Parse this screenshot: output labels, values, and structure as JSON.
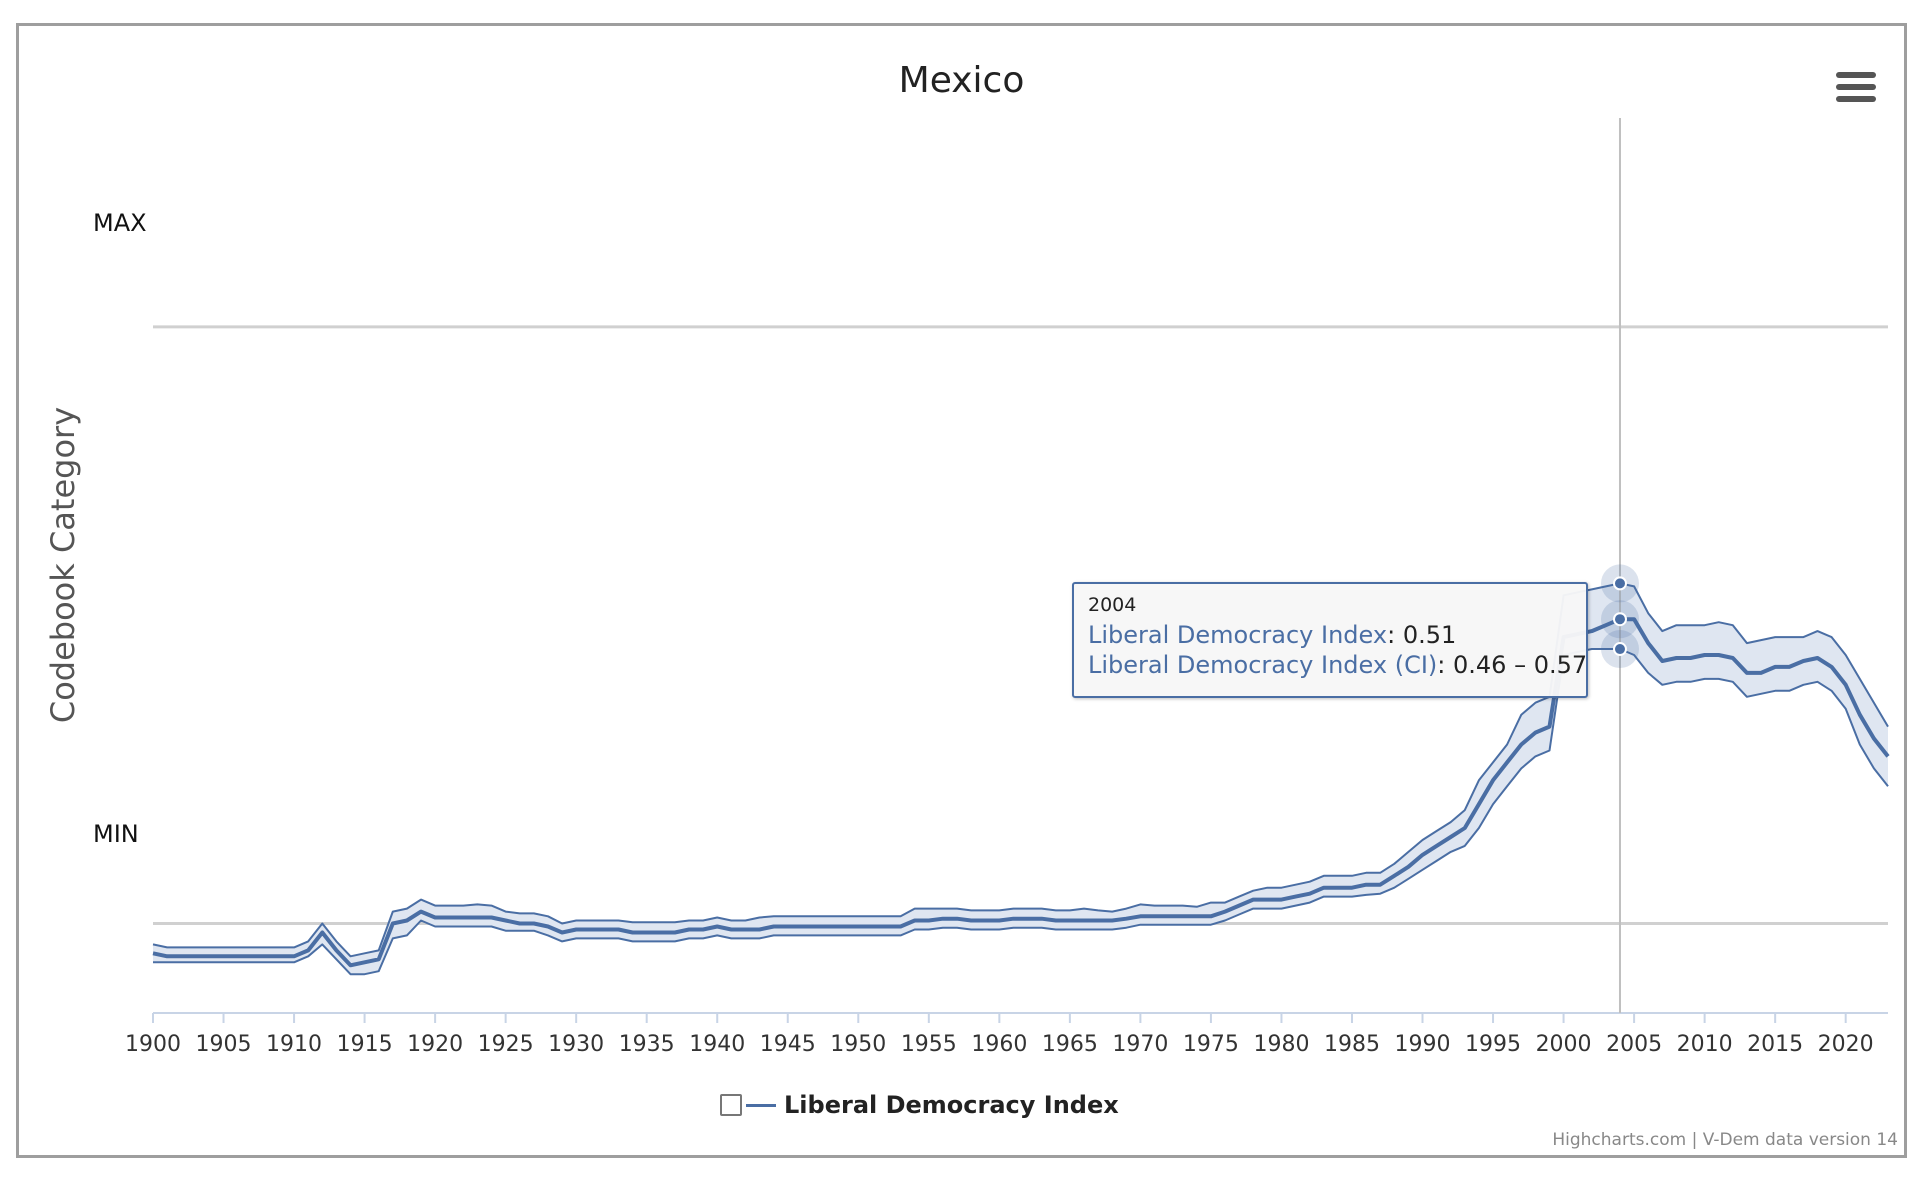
{
  "colors": {
    "series": "#4a6ea4",
    "band": "#dfe6f1",
    "grid": "#d0d0d0",
    "crosshair": "#c0c0c0"
  },
  "menu": {
    "icon": "hamburger-menu-icon"
  },
  "chart_data": {
    "type": "line",
    "title": "Mexico",
    "ylabel": "Codebook Category",
    "xlabel": "",
    "y_categories": {
      "max_label": "MAX",
      "min_label": "MIN"
    },
    "xlim": [
      1900,
      2023
    ],
    "ylim": [
      -0.15,
      1.35
    ],
    "grid": true,
    "legend_position": "bottom-center",
    "x_ticks": [
      1900,
      1905,
      1910,
      1915,
      1920,
      1925,
      1930,
      1935,
      1940,
      1945,
      1950,
      1955,
      1960,
      1965,
      1970,
      1975,
      1980,
      1985,
      1990,
      1995,
      2000,
      2005,
      2010,
      2015,
      2020
    ],
    "series": [
      {
        "name": "Liberal Democracy Index",
        "x": [
          1900,
          1901,
          1910,
          1911,
          1912,
          1913,
          1914,
          1915,
          1916,
          1917,
          1918,
          1919,
          1920,
          1921,
          1922,
          1923,
          1924,
          1925,
          1926,
          1927,
          1928,
          1929,
          1930,
          1931,
          1932,
          1933,
          1934,
          1935,
          1936,
          1937,
          1938,
          1939,
          1940,
          1941,
          1942,
          1943,
          1944,
          1945,
          1946,
          1947,
          1948,
          1949,
          1950,
          1951,
          1952,
          1953,
          1954,
          1955,
          1956,
          1957,
          1958,
          1959,
          1960,
          1961,
          1962,
          1963,
          1964,
          1965,
          1966,
          1967,
          1968,
          1969,
          1970,
          1971,
          1972,
          1973,
          1974,
          1975,
          1976,
          1977,
          1978,
          1979,
          1980,
          1981,
          1982,
          1983,
          1984,
          1985,
          1986,
          1987,
          1988,
          1989,
          1990,
          1991,
          1992,
          1993,
          1994,
          1995,
          1996,
          1997,
          1998,
          1999,
          2000,
          2001,
          2002,
          2003,
          2004,
          2005,
          2006,
          2007,
          2008,
          2009,
          2010,
          2011,
          2012,
          2013,
          2014,
          2015,
          2016,
          2017,
          2018,
          2019,
          2020,
          2021,
          2022,
          2023
        ],
        "values": [
          -0.05,
          -0.055,
          -0.055,
          -0.045,
          -0.015,
          -0.045,
          -0.07,
          -0.065,
          -0.06,
          0.0,
          0.005,
          0.02,
          0.01,
          0.01,
          0.01,
          0.01,
          0.01,
          0.005,
          0.0,
          0.0,
          -0.005,
          -0.015,
          -0.01,
          -0.01,
          -0.01,
          -0.01,
          -0.015,
          -0.015,
          -0.015,
          -0.015,
          -0.01,
          -0.01,
          -0.005,
          -0.01,
          -0.01,
          -0.01,
          -0.005,
          -0.005,
          -0.005,
          -0.005,
          -0.005,
          -0.005,
          -0.005,
          -0.005,
          -0.005,
          -0.005,
          0.005,
          0.005,
          0.008,
          0.008,
          0.005,
          0.005,
          0.005,
          0.008,
          0.008,
          0.008,
          0.005,
          0.005,
          0.005,
          0.005,
          0.005,
          0.008,
          0.012,
          0.012,
          0.012,
          0.012,
          0.012,
          0.012,
          0.02,
          0.03,
          0.04,
          0.04,
          0.04,
          0.045,
          0.05,
          0.06,
          0.06,
          0.06,
          0.065,
          0.065,
          0.08,
          0.095,
          0.115,
          0.13,
          0.145,
          0.16,
          0.2,
          0.24,
          0.27,
          0.3,
          0.32,
          0.33,
          0.48,
          0.485,
          0.49,
          0.5,
          0.51,
          0.51,
          0.47,
          0.44,
          0.445,
          0.445,
          0.45,
          0.45,
          0.445,
          0.42,
          0.42,
          0.43,
          0.43,
          0.44,
          0.445,
          0.43,
          0.4,
          0.35,
          0.31,
          0.28
        ],
        "ci_low": [
          -0.065,
          -0.065,
          -0.065,
          -0.055,
          -0.035,
          -0.06,
          -0.085,
          -0.085,
          -0.08,
          -0.025,
          -0.02,
          0.005,
          -0.005,
          -0.005,
          -0.005,
          -0.005,
          -0.005,
          -0.012,
          -0.012,
          -0.012,
          -0.02,
          -0.03,
          -0.025,
          -0.025,
          -0.025,
          -0.025,
          -0.03,
          -0.03,
          -0.03,
          -0.03,
          -0.025,
          -0.025,
          -0.02,
          -0.025,
          -0.025,
          -0.025,
          -0.02,
          -0.02,
          -0.02,
          -0.02,
          -0.02,
          -0.02,
          -0.02,
          -0.02,
          -0.02,
          -0.02,
          -0.01,
          -0.01,
          -0.007,
          -0.007,
          -0.01,
          -0.01,
          -0.01,
          -0.007,
          -0.007,
          -0.007,
          -0.01,
          -0.01,
          -0.01,
          -0.01,
          -0.01,
          -0.007,
          -0.002,
          -0.002,
          -0.002,
          -0.002,
          -0.002,
          -0.002,
          0.005,
          0.015,
          0.025,
          0.025,
          0.025,
          0.03,
          0.035,
          0.045,
          0.045,
          0.045,
          0.048,
          0.05,
          0.06,
          0.075,
          0.09,
          0.105,
          0.12,
          0.13,
          0.16,
          0.2,
          0.23,
          0.26,
          0.28,
          0.29,
          0.45,
          0.455,
          0.46,
          0.46,
          0.46,
          0.45,
          0.42,
          0.4,
          0.405,
          0.405,
          0.41,
          0.41,
          0.405,
          0.38,
          0.385,
          0.39,
          0.39,
          0.4,
          0.405,
          0.39,
          0.36,
          0.3,
          0.26,
          0.23
        ],
        "ci_high": [
          -0.035,
          -0.04,
          -0.04,
          -0.03,
          0.0,
          -0.03,
          -0.055,
          -0.05,
          -0.045,
          0.02,
          0.025,
          0.04,
          0.03,
          0.03,
          0.03,
          0.032,
          0.03,
          0.02,
          0.017,
          0.017,
          0.012,
          0.0,
          0.005,
          0.005,
          0.005,
          0.005,
          0.002,
          0.002,
          0.002,
          0.002,
          0.005,
          0.005,
          0.01,
          0.005,
          0.005,
          0.01,
          0.012,
          0.012,
          0.012,
          0.012,
          0.012,
          0.012,
          0.012,
          0.012,
          0.012,
          0.012,
          0.025,
          0.025,
          0.025,
          0.025,
          0.022,
          0.022,
          0.022,
          0.025,
          0.025,
          0.025,
          0.022,
          0.022,
          0.025,
          0.022,
          0.02,
          0.025,
          0.032,
          0.03,
          0.03,
          0.03,
          0.028,
          0.035,
          0.035,
          0.045,
          0.055,
          0.06,
          0.06,
          0.065,
          0.07,
          0.08,
          0.08,
          0.08,
          0.085,
          0.085,
          0.1,
          0.12,
          0.14,
          0.155,
          0.17,
          0.19,
          0.24,
          0.27,
          0.3,
          0.35,
          0.37,
          0.38,
          0.55,
          0.555,
          0.56,
          0.565,
          0.57,
          0.565,
          0.52,
          0.49,
          0.5,
          0.5,
          0.5,
          0.505,
          0.5,
          0.47,
          0.475,
          0.48,
          0.48,
          0.48,
          0.49,
          0.48,
          0.45,
          0.41,
          0.37,
          0.33
        ]
      }
    ],
    "tooltip": {
      "year": "2004",
      "series_label": "Liberal Democracy Index",
      "value": "0.51",
      "ci_label": "Liberal Democracy Index (CI)",
      "ci_value": "0.46 – 0.57"
    },
    "legend": [
      "Liberal Democracy Index"
    ],
    "credits": "Highcharts.com | V-Dem data version 14"
  }
}
